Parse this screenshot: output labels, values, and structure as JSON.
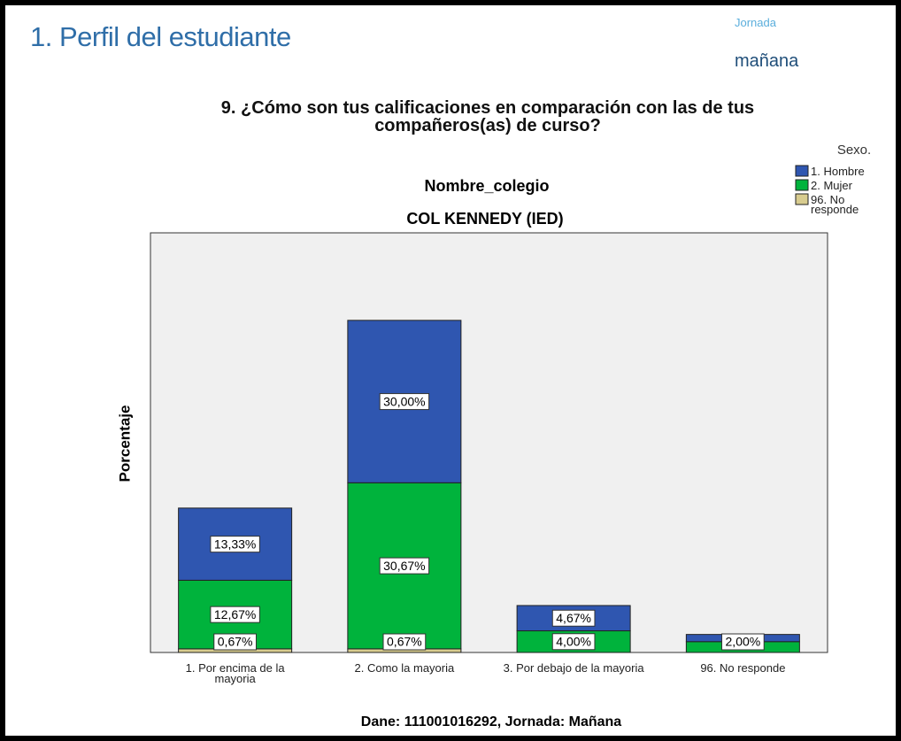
{
  "header": {
    "title": "1. Perfil del estudiante",
    "jornada_label": "Jornada",
    "jornada_value": "mañana"
  },
  "chart_data": {
    "type": "stacked_bar",
    "title": "9. ¿Cómo son tus calificaciones en comparación con las de tus compañeros(as) de curso?",
    "panel_label": "Nombre_colegio",
    "panel_value": "COL KENNEDY (IED)",
    "y_label": "Porcentaje",
    "footer": "Dane: 111001016292, Jornada: Mañana",
    "legend_title": "Sexo.",
    "legend": "right",
    "categories": [
      "1. Por encima de la mayoria",
      "2. Como la mayoria",
      "3. Por debajo de la mayoria",
      "96. No responde"
    ],
    "series": [
      {
        "name": "96. No responde",
        "color": "#d8cc8f",
        "values": [
          0.67,
          0.67,
          null,
          null
        ],
        "value_labels": [
          "0,67%",
          "0,67%",
          null,
          null
        ]
      },
      {
        "name": "2. Mujer",
        "color": "#00b33c",
        "values": [
          12.67,
          30.67,
          4.0,
          2.0
        ],
        "value_labels": [
          "12,67%",
          "30,67%",
          "4,00%",
          "2,00%"
        ]
      },
      {
        "name": "1. Hombre",
        "color": "#2f56b0",
        "values": [
          13.33,
          30.0,
          4.67,
          1.33
        ],
        "value_labels": [
          "13,33%",
          "30,00%",
          "4,67%",
          null
        ]
      }
    ],
    "ylim": [
      0,
      77.5
    ]
  }
}
